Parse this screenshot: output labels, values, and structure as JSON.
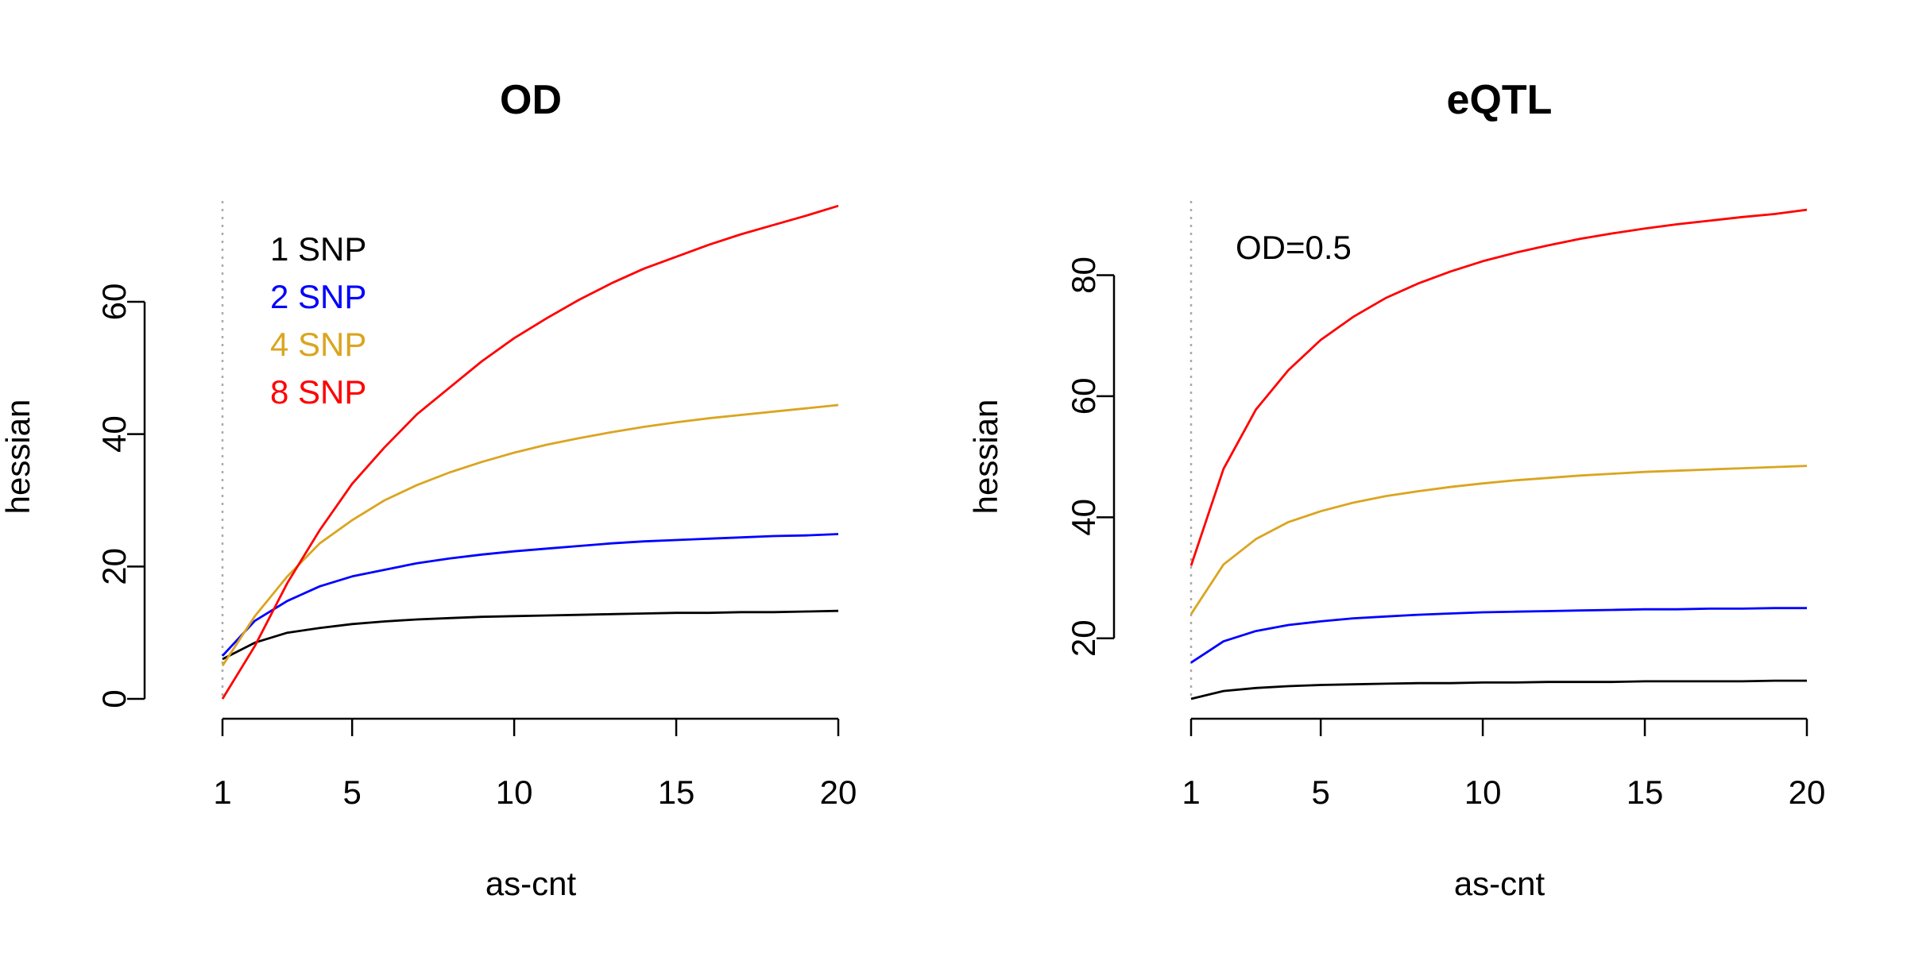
{
  "chart_data": [
    {
      "type": "line",
      "title": "OD",
      "xlabel": "as-cnt",
      "ylabel": "hessian",
      "xlim": [
        1,
        20
      ],
      "ylim": [
        0,
        75
      ],
      "x_ticks": [
        1,
        5,
        10,
        15,
        20
      ],
      "y_ticks": [
        0,
        20,
        40,
        60
      ],
      "ref_vline_x": 1,
      "grid": false,
      "legend_position": "top-left",
      "annotation": "",
      "x": [
        1,
        2,
        3,
        4,
        5,
        6,
        7,
        8,
        9,
        10,
        11,
        12,
        13,
        14,
        15,
        16,
        17,
        18,
        19,
        20
      ],
      "series": [
        {
          "name": "1 SNP",
          "color": "#000000",
          "values": [
            6.0,
            8.5,
            10.0,
            10.7,
            11.3,
            11.7,
            12.0,
            12.2,
            12.4,
            12.5,
            12.6,
            12.7,
            12.8,
            12.9,
            13.0,
            13.0,
            13.1,
            13.1,
            13.2,
            13.3
          ]
        },
        {
          "name": "2 SNP",
          "color": "#0000FF",
          "values": [
            6.5,
            11.8,
            14.8,
            17.0,
            18.5,
            19.5,
            20.5,
            21.2,
            21.8,
            22.3,
            22.7,
            23.1,
            23.5,
            23.8,
            24.0,
            24.2,
            24.4,
            24.6,
            24.7,
            24.9
          ]
        },
        {
          "name": "4 SNP",
          "color": "#DAA520",
          "values": [
            5.0,
            12.5,
            18.5,
            23.5,
            27.0,
            30.0,
            32.3,
            34.2,
            35.8,
            37.2,
            38.4,
            39.4,
            40.3,
            41.1,
            41.8,
            42.4,
            42.9,
            43.4,
            43.9,
            44.4
          ]
        },
        {
          "name": "8 SNP",
          "color": "#FF0000",
          "values": [
            0.0,
            8.0,
            17.5,
            25.5,
            32.5,
            38.0,
            43.0,
            47.0,
            51.0,
            54.5,
            57.5,
            60.3,
            62.8,
            65.0,
            66.8,
            68.6,
            70.2,
            71.6,
            73.0,
            74.5
          ]
        }
      ]
    },
    {
      "type": "line",
      "title": "eQTL",
      "xlabel": "as-cnt",
      "ylabel": "hessian",
      "xlim": [
        1,
        20
      ],
      "ylim": [
        10,
        92
      ],
      "x_ticks": [
        1,
        5,
        10,
        15,
        20
      ],
      "y_ticks": [
        20,
        40,
        60,
        80
      ],
      "ref_vline_x": 1,
      "grid": false,
      "legend_position": "",
      "annotation": "OD=0.5",
      "x": [
        1,
        2,
        3,
        4,
        5,
        6,
        7,
        8,
        9,
        10,
        11,
        12,
        13,
        14,
        15,
        16,
        17,
        18,
        19,
        20
      ],
      "series": [
        {
          "name": "",
          "color": "#000000",
          "values": [
            10.0,
            11.3,
            11.8,
            12.1,
            12.3,
            12.4,
            12.5,
            12.6,
            12.6,
            12.7,
            12.7,
            12.8,
            12.8,
            12.8,
            12.9,
            12.9,
            12.9,
            12.9,
            13.0,
            13.0
          ]
        },
        {
          "name": "",
          "color": "#0000FF",
          "values": [
            16.0,
            19.5,
            21.2,
            22.2,
            22.8,
            23.3,
            23.6,
            23.9,
            24.1,
            24.3,
            24.4,
            24.5,
            24.6,
            24.7,
            24.8,
            24.8,
            24.9,
            24.9,
            25.0,
            25.0
          ]
        },
        {
          "name": "",
          "color": "#DAA520",
          "values": [
            24.0,
            32.2,
            36.4,
            39.2,
            41.0,
            42.4,
            43.5,
            44.3,
            45.0,
            45.6,
            46.1,
            46.5,
            46.9,
            47.2,
            47.5,
            47.7,
            47.9,
            48.1,
            48.3,
            48.5
          ]
        },
        {
          "name": "",
          "color": "#FF0000",
          "values": [
            32.0,
            48.0,
            57.8,
            64.3,
            69.3,
            73.1,
            76.2,
            78.6,
            80.6,
            82.3,
            83.7,
            84.9,
            86.0,
            86.9,
            87.7,
            88.4,
            89.0,
            89.6,
            90.1,
            90.8
          ]
        }
      ]
    }
  ]
}
